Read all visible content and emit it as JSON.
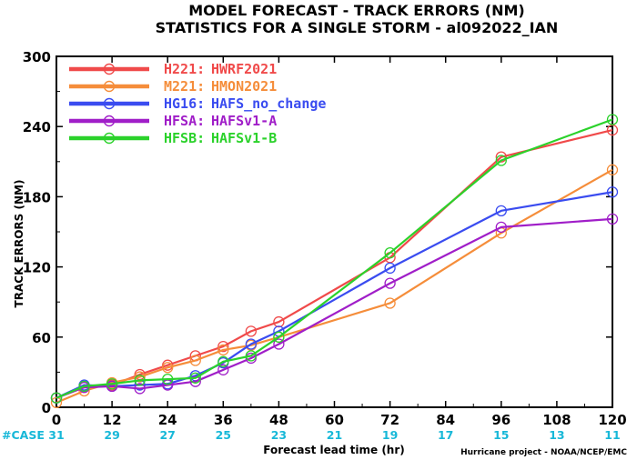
{
  "chart_data": {
    "type": "line",
    "title": "MODEL FORECAST - TRACK ERRORS (NM)",
    "subtitle": "STATISTICS FOR A SINGLE STORM - al092022_IAN",
    "xlabel": "Forecast lead time (hr)",
    "ylabel": "TRACK ERRORS (NM)",
    "xlim": [
      0,
      120
    ],
    "ylim": [
      0,
      300
    ],
    "xticks": [
      "0",
      "12",
      "24",
      "36",
      "48",
      "60",
      "72",
      "84",
      "96",
      "108",
      "120"
    ],
    "yticks": [
      "0",
      "60",
      "120",
      "180",
      "240",
      "300"
    ],
    "legend_position": "top-left",
    "series": [
      {
        "name": "H221:",
        "desc": "HWRF2021",
        "color": "#f04a4a",
        "x": [
          0,
          6,
          12,
          18,
          24,
          30,
          36,
          42,
          48,
          72,
          96,
          120
        ],
        "y": [
          8,
          17,
          19,
          28,
          36,
          44,
          52,
          65,
          73,
          128,
          214,
          237
        ]
      },
      {
        "name": "M221:",
        "desc": "HMON2021",
        "color": "#f58d3a",
        "x": [
          0,
          6,
          12,
          18,
          24,
          30,
          36,
          42,
          48,
          72,
          96,
          120
        ],
        "y": [
          4,
          14,
          21,
          26,
          34,
          40,
          49,
          53,
          60,
          89,
          149,
          203
        ]
      },
      {
        "name": "HG16:",
        "desc": "HAFS_no_change",
        "color": "#3a4cf0",
        "x": [
          0,
          6,
          12,
          18,
          24,
          30,
          36,
          42,
          48,
          72,
          96,
          120
        ],
        "y": [
          8,
          19,
          18,
          19,
          20,
          27,
          38,
          54,
          65,
          119,
          168,
          184
        ]
      },
      {
        "name": "HFSA:",
        "desc": "HAFSv1-A",
        "color": "#a01ec8",
        "x": [
          0,
          6,
          12,
          18,
          24,
          30,
          36,
          42,
          48,
          72,
          96,
          120
        ],
        "y": [
          8,
          17,
          18,
          16,
          19,
          22,
          32,
          42,
          54,
          106,
          154,
          161
        ]
      },
      {
        "name": "HFSB:",
        "desc": "HAFSv1-B",
        "color": "#2bd22b",
        "x": [
          0,
          6,
          12,
          18,
          24,
          30,
          36,
          42,
          48,
          72,
          96,
          120
        ],
        "y": [
          8,
          18,
          20,
          23,
          24,
          25,
          39,
          44,
          60,
          132,
          211,
          246
        ]
      }
    ],
    "case_label": "#CASE",
    "case_color": "#18b8d8",
    "cases": [
      "31",
      "29",
      "27",
      "25",
      "23",
      "21",
      "19",
      "17",
      "15",
      "13",
      "11"
    ],
    "credit": "Hurricane project - NOAA/NCEP/EMC"
  }
}
